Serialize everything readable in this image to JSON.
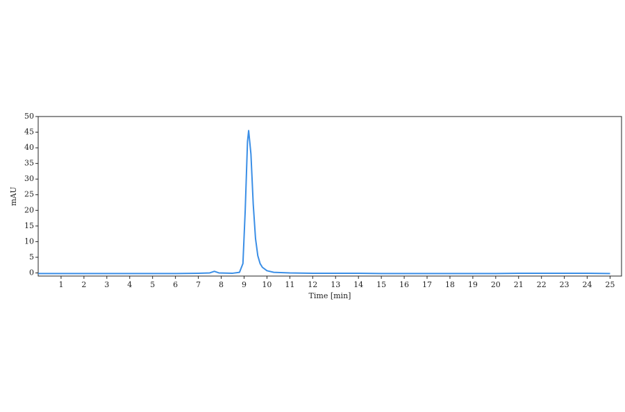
{
  "chart_data": {
    "type": "line",
    "xlabel": "Time [min]",
    "ylabel": "mAU",
    "xlim": [
      0,
      25.5
    ],
    "ylim": [
      -1,
      50
    ],
    "xticks": [
      1,
      2,
      3,
      4,
      5,
      6,
      7,
      8,
      9,
      10,
      11,
      12,
      13,
      14,
      15,
      16,
      17,
      18,
      19,
      20,
      21,
      22,
      23,
      24,
      25
    ],
    "yticks": [
      0,
      5,
      10,
      15,
      20,
      25,
      30,
      35,
      40,
      45,
      50
    ],
    "grid": false,
    "series": [
      {
        "color": "#3a8ee6",
        "x": [
          0,
          1,
          2,
          3,
          4,
          5,
          6,
          7,
          7.5,
          7.7,
          7.9,
          8.5,
          8.8,
          8.95,
          9.05,
          9.15,
          9.2,
          9.3,
          9.4,
          9.5,
          9.6,
          9.7,
          9.8,
          10,
          10.3,
          11,
          12,
          13,
          14,
          15,
          16,
          17,
          18,
          19,
          20,
          21,
          22,
          23,
          24,
          25
        ],
        "values": [
          -0.2,
          -0.2,
          -0.2,
          -0.2,
          -0.2,
          -0.2,
          -0.2,
          -0.1,
          0,
          0.5,
          0,
          -0.1,
          0.2,
          3,
          20,
          42,
          45.5,
          38,
          22,
          11,
          5.5,
          3,
          1.8,
          0.7,
          0.2,
          0,
          -0.1,
          -0.1,
          -0.1,
          -0.2,
          -0.2,
          -0.2,
          -0.2,
          -0.2,
          -0.2,
          -0.1,
          -0.1,
          -0.1,
          -0.1,
          -0.2
        ]
      }
    ]
  }
}
